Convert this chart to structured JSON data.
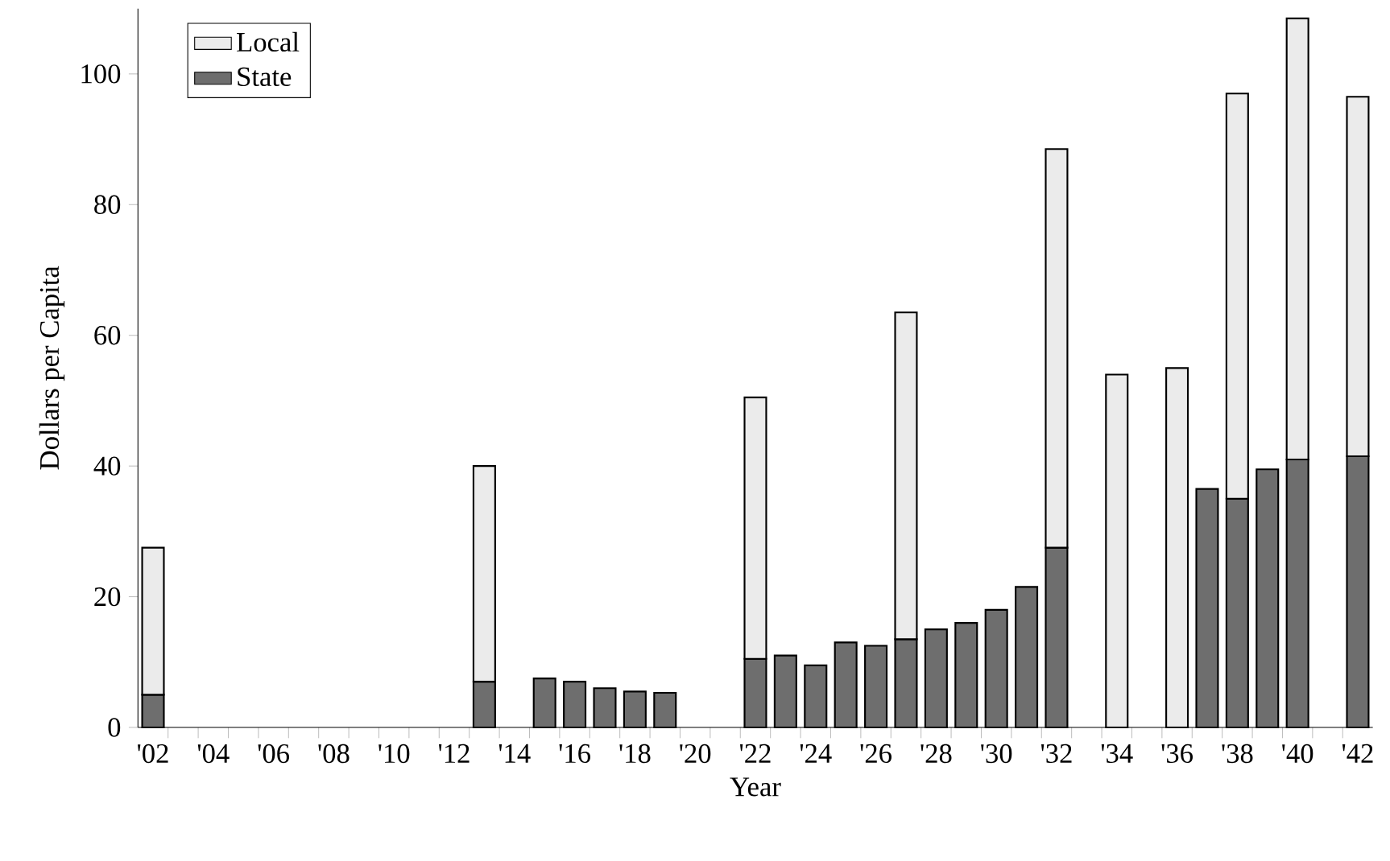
{
  "chart_data": {
    "type": "bar",
    "stacked": true,
    "xlabel": "Year",
    "ylabel": "Dollars per Capita",
    "categories": [
      "'02",
      null,
      "'04",
      null,
      "'06",
      null,
      "'08",
      null,
      "'10",
      null,
      "'12",
      null,
      "'14",
      null,
      "'16",
      null,
      "'18",
      null,
      "'20",
      null,
      "'22",
      null,
      "'24",
      null,
      "'26",
      null,
      "'28",
      null,
      "'30",
      null,
      "'32",
      null,
      "'34",
      null,
      "'36",
      null,
      "'38",
      null,
      "'40",
      null,
      "'42"
    ],
    "series": [
      {
        "name": "State",
        "color": "#6e6e6e",
        "values": [
          5,
          null,
          null,
          null,
          null,
          null,
          null,
          null,
          null,
          null,
          null,
          7,
          null,
          7.5,
          7,
          6,
          5.5,
          5.3,
          null,
          null,
          10.5,
          11,
          9.5,
          13,
          12.5,
          13.5,
          15,
          16,
          18,
          21.5,
          27.5,
          null,
          null,
          null,
          null,
          36.5,
          35,
          39.5,
          41,
          null,
          41.5
        ]
      },
      {
        "name": "Local",
        "color": "#ebebeb",
        "values": [
          22.5,
          null,
          null,
          null,
          null,
          null,
          null,
          null,
          null,
          null,
          null,
          33,
          null,
          null,
          null,
          null,
          null,
          null,
          null,
          null,
          40,
          null,
          null,
          null,
          null,
          50,
          null,
          null,
          null,
          null,
          61,
          null,
          54,
          null,
          55,
          null,
          62,
          null,
          67.5,
          null,
          55
        ]
      }
    ],
    "ylim": [
      0,
      110
    ],
    "yticks": [
      0,
      20,
      40,
      60,
      80,
      100
    ],
    "legend": "top left",
    "grid": false
  }
}
